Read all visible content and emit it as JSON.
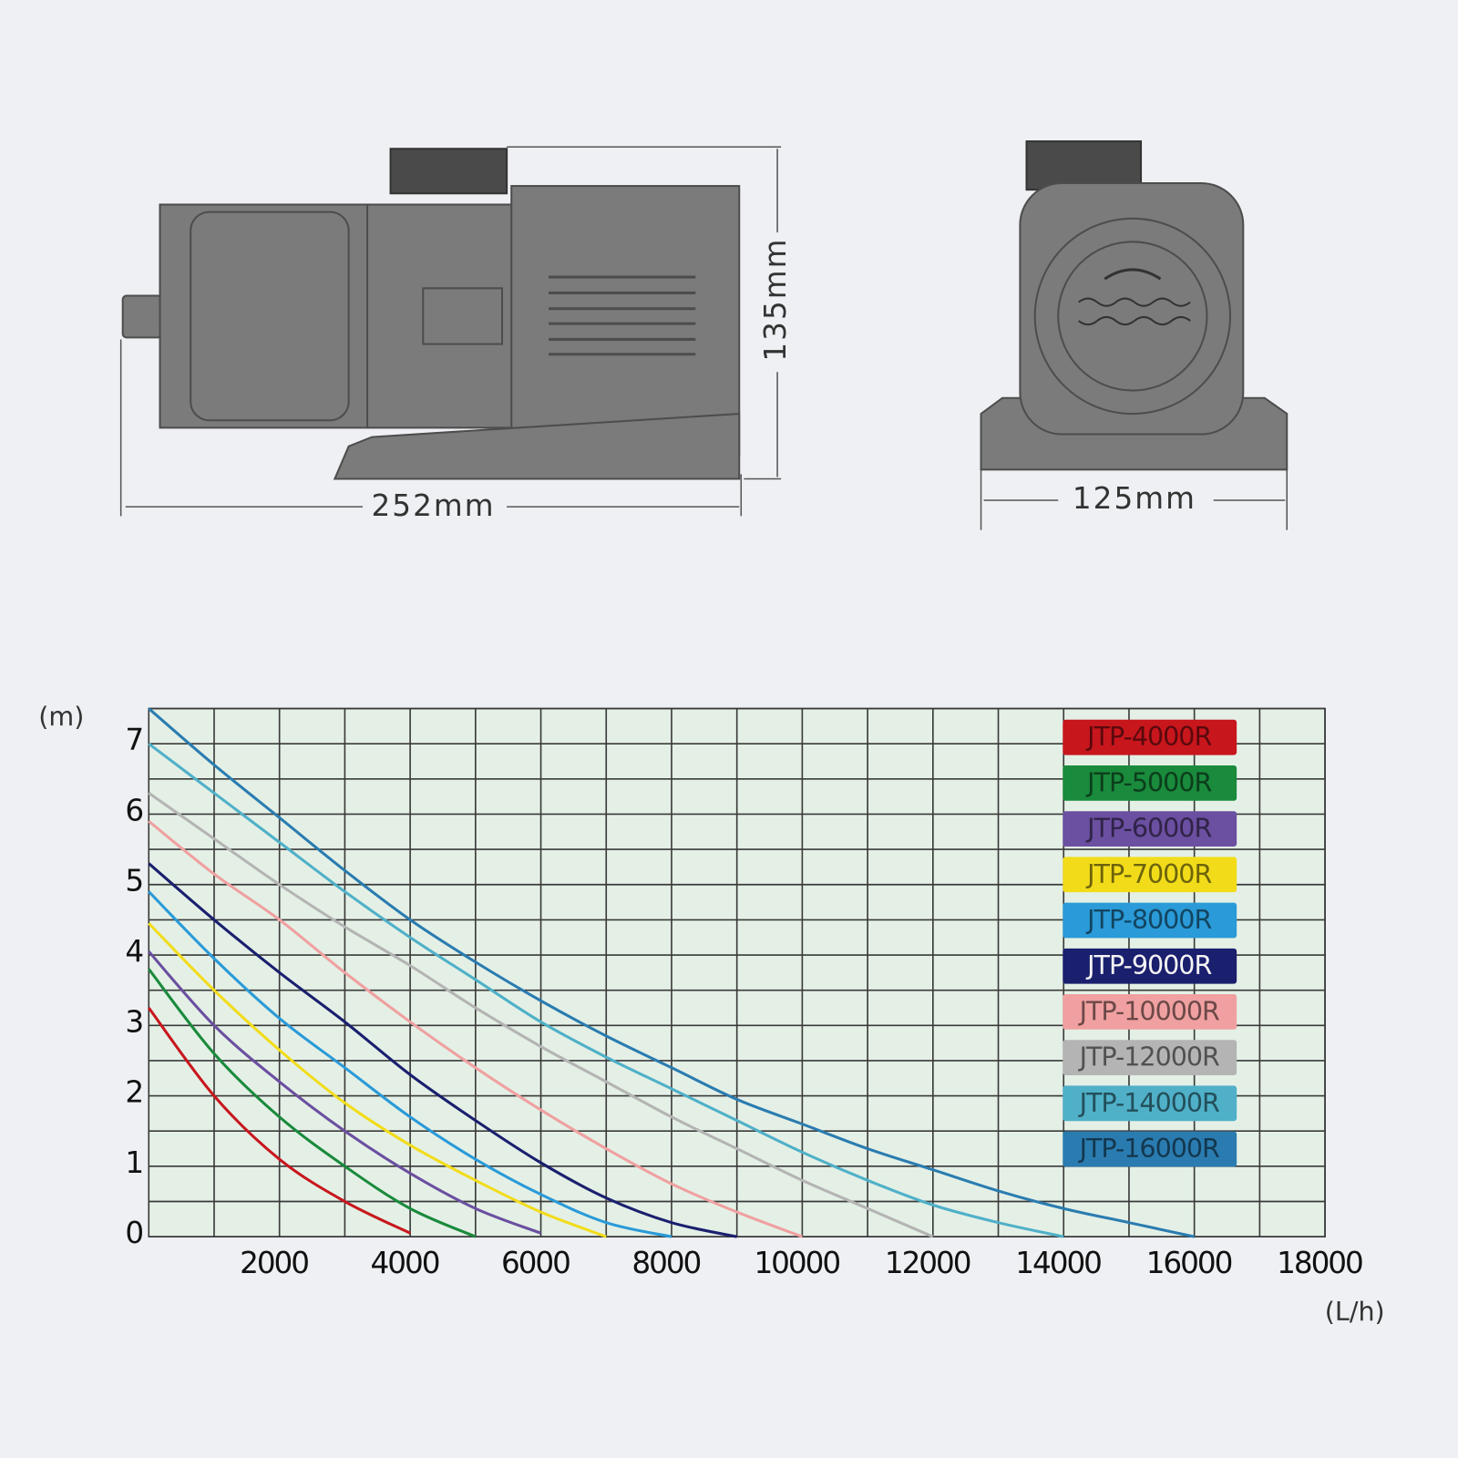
{
  "dimensions": {
    "length": "252mm",
    "height": "135mm",
    "width": "125mm"
  },
  "chart_data": {
    "type": "line",
    "y_label": "(m)",
    "x_label": "(L/h)",
    "xlim": [
      0,
      18000
    ],
    "ylim": [
      0,
      7.5
    ],
    "xticks": [
      2000,
      4000,
      6000,
      8000,
      10000,
      12000,
      14000,
      16000,
      18000
    ],
    "x_minor_ticks": [
      1000,
      3000,
      5000,
      7000,
      9000,
      11000,
      13000,
      15000,
      17000
    ],
    "yticks": [
      0,
      1,
      2,
      3,
      4,
      5,
      6,
      7
    ],
    "y_minor_ticks": [
      0.5,
      1.5,
      2.5,
      3.5,
      4.5,
      5.5,
      6.5,
      7.5
    ],
    "grid": true,
    "legend": "top-right",
    "series": [
      {
        "name": "JTP-4000R",
        "color": "#c8161d",
        "x": [
          0,
          1000,
          2000,
          3000,
          4000
        ],
        "values": [
          3.25,
          2.0,
          1.1,
          0.5,
          0.05
        ]
      },
      {
        "name": "JTP-5000R",
        "color": "#1a8a3c",
        "x": [
          0,
          1000,
          2000,
          3000,
          4000,
          5000
        ],
        "values": [
          3.8,
          2.6,
          1.7,
          1.0,
          0.4,
          0
        ]
      },
      {
        "name": "JTP-6000R",
        "color": "#6b4fa0",
        "x": [
          0,
          1000,
          2000,
          3000,
          4000,
          5000,
          6000
        ],
        "values": [
          4.05,
          3.0,
          2.2,
          1.5,
          0.9,
          0.4,
          0.05
        ]
      },
      {
        "name": "JTP-7000R",
        "color": "#f2dc1a",
        "x": [
          0,
          1000,
          2000,
          3000,
          4000,
          5000,
          6000,
          7000
        ],
        "values": [
          4.45,
          3.5,
          2.65,
          1.9,
          1.3,
          0.8,
          0.35,
          0
        ]
      },
      {
        "name": "JTP-8000R",
        "color": "#2a9ad8",
        "x": [
          0,
          1000,
          2000,
          3000,
          4000,
          5000,
          6000,
          7000,
          8000
        ],
        "values": [
          4.9,
          3.95,
          3.1,
          2.4,
          1.7,
          1.1,
          0.6,
          0.2,
          0
        ]
      },
      {
        "name": "JTP-9000R",
        "color": "#1a1f6e",
        "x": [
          0,
          1000,
          2000,
          3000,
          4000,
          5000,
          6000,
          7000,
          8000,
          9000
        ],
        "values": [
          5.3,
          4.5,
          3.75,
          3.05,
          2.3,
          1.65,
          1.05,
          0.55,
          0.2,
          0
        ]
      },
      {
        "name": "JTP-10000R",
        "color": "#f0a0a0",
        "x": [
          0,
          1000,
          2000,
          3000,
          4000,
          5000,
          6000,
          7000,
          8000,
          9000,
          10000
        ],
        "values": [
          5.9,
          5.15,
          4.5,
          3.75,
          3.05,
          2.4,
          1.8,
          1.25,
          0.75,
          0.35,
          0
        ]
      },
      {
        "name": "JTP-12000R",
        "color": "#b4b4b4",
        "x": [
          0,
          1000,
          2000,
          3000,
          4000,
          5000,
          6000,
          7000,
          8000,
          9000,
          10000,
          11000,
          12000
        ],
        "values": [
          6.3,
          5.65,
          5.0,
          4.4,
          3.85,
          3.25,
          2.7,
          2.2,
          1.7,
          1.25,
          0.8,
          0.4,
          0
        ]
      },
      {
        "name": "JTP-14000R",
        "color": "#4fb0c8",
        "x": [
          0,
          1000,
          2000,
          3000,
          4000,
          5000,
          6000,
          7000,
          8000,
          9000,
          10000,
          11000,
          12000,
          13000,
          14000
        ],
        "values": [
          7.0,
          6.3,
          5.6,
          4.9,
          4.25,
          3.65,
          3.05,
          2.55,
          2.1,
          1.65,
          1.2,
          0.8,
          0.45,
          0.2,
          0
        ]
      },
      {
        "name": "JTP-16000R",
        "color": "#2a7cb0",
        "x": [
          0,
          1000,
          2000,
          3000,
          4000,
          5000,
          6000,
          7000,
          8000,
          9000,
          10000,
          11000,
          12000,
          13000,
          14000,
          15000,
          16000
        ],
        "values": [
          7.5,
          6.7,
          5.95,
          5.2,
          4.5,
          3.9,
          3.35,
          2.85,
          2.4,
          1.95,
          1.6,
          1.25,
          0.95,
          0.65,
          0.4,
          0.2,
          0
        ]
      }
    ]
  }
}
